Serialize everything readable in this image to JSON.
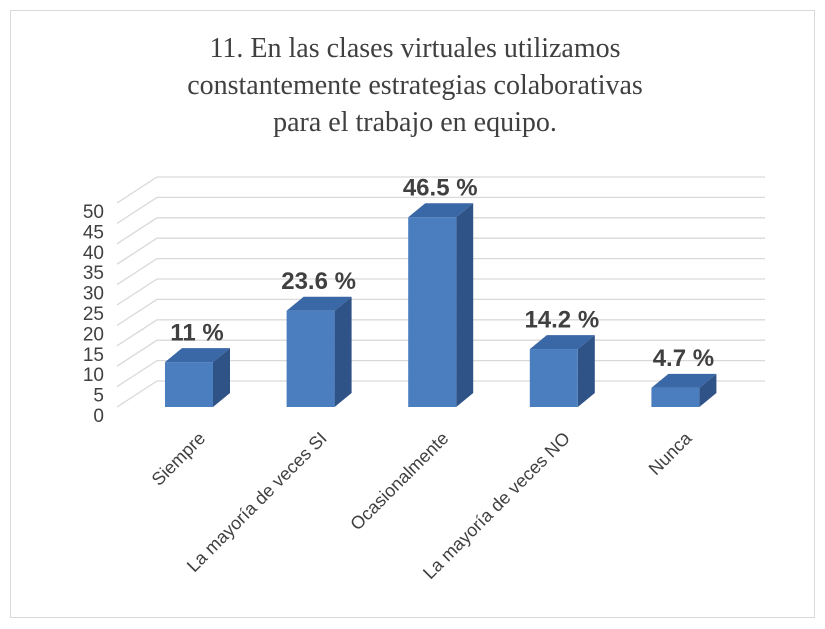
{
  "chart_data": {
    "type": "bar3d",
    "title": "11. En las clases virtuales utilizamos constantemente estrategias colaborativas para el trabajo en equipo.",
    "categories": [
      "Siempre",
      "La mayoría de veces SI",
      "Ocasionalmente",
      "La mayoría de veces NO",
      "Nunca"
    ],
    "values": [
      11,
      23.6,
      46.5,
      14.2,
      4.7
    ],
    "value_labels": [
      "11 %",
      "23.6 %",
      "46.5 %",
      "14.2 %",
      "4.7 %"
    ],
    "color": "#4a7ebf",
    "ylim": [
      0,
      50
    ],
    "yticks": [
      0,
      5,
      10,
      15,
      20,
      25,
      30,
      35,
      40,
      45,
      50
    ],
    "grid": true
  }
}
